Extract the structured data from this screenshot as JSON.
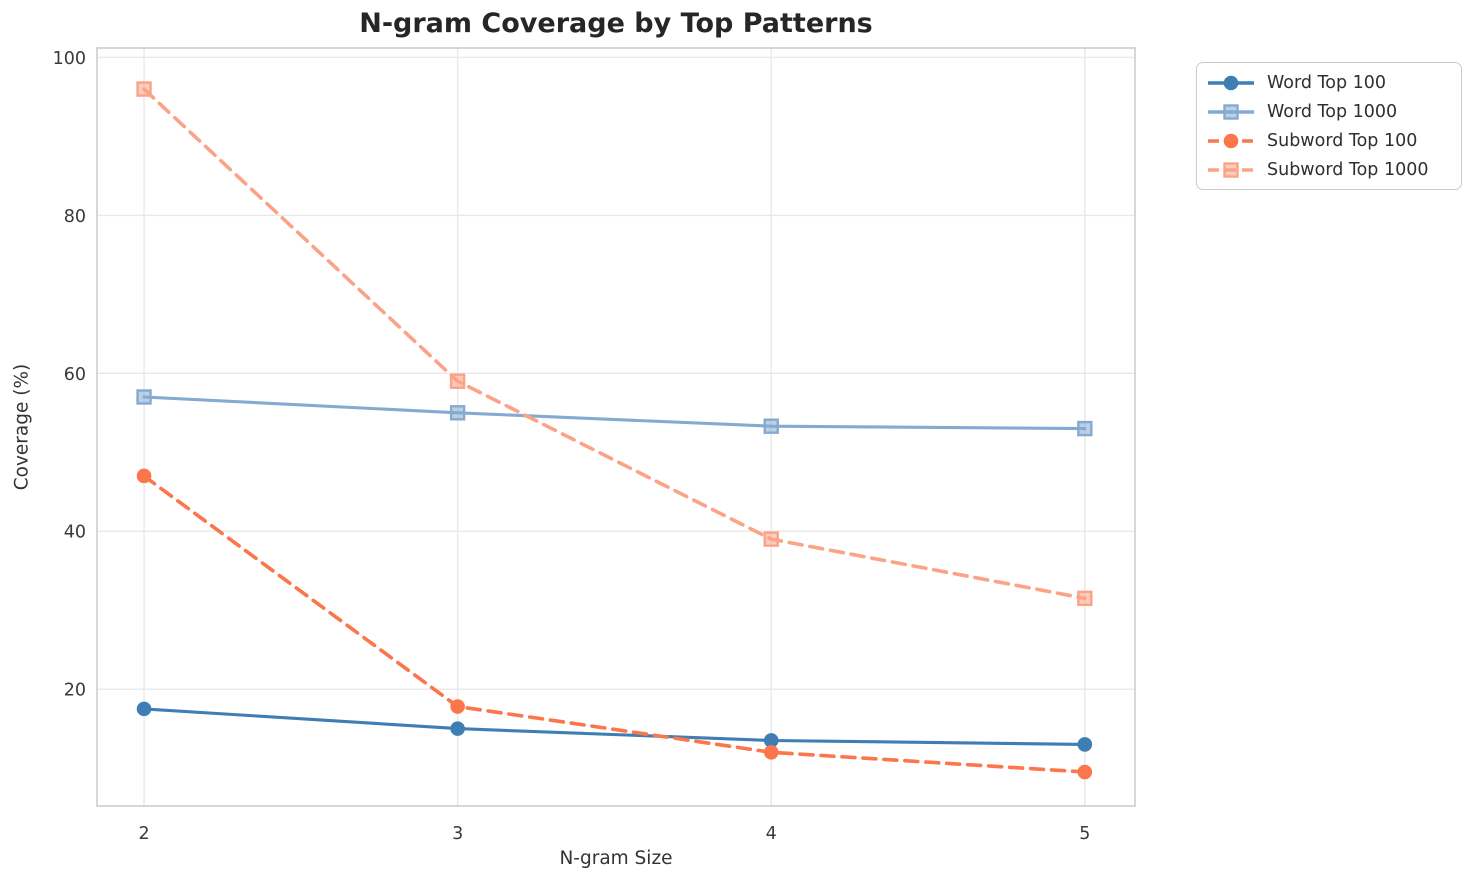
{
  "figure": {
    "background": "#ffffff",
    "grid_color": "#e8e8e8",
    "spine_color": "#c6c6c6",
    "tick_label_color": "#3a3a3a",
    "title_color": "#262626"
  },
  "chart_data": {
    "type": "line",
    "title": "N-gram Coverage by Top Patterns",
    "xlabel": "N-gram Size",
    "ylabel": "Coverage (%)",
    "x": [
      2,
      3,
      4,
      5
    ],
    "x_tick_labels": [
      "2",
      "3",
      "4",
      "5"
    ],
    "y_tick_values": [
      20,
      40,
      60,
      80,
      100
    ],
    "y_tick_labels": [
      "20",
      "40",
      "60",
      "80",
      "100"
    ],
    "xlim": [
      1.85,
      5.16
    ],
    "ylim": [
      5.2,
      101.2
    ],
    "grid": true,
    "legend_position": "outside upper right",
    "series": [
      {
        "name": "Word Top 100",
        "values": [
          17.5,
          15,
          13.5,
          13
        ],
        "color": "#3e7eb4",
        "line_style": "solid",
        "marker": "circle"
      },
      {
        "name": "Word Top 1000",
        "values": [
          57,
          55,
          53.3,
          53
        ],
        "color": "#85aacf",
        "line_style": "solid",
        "marker": "square"
      },
      {
        "name": "Subword Top 100",
        "values": [
          47,
          17.8,
          12,
          9.5
        ],
        "color": "#fb764a",
        "line_style": "dashed",
        "marker": "circle"
      },
      {
        "name": "Subword Top 1000",
        "values": [
          96,
          59,
          39,
          31.5
        ],
        "color": "#fca287",
        "line_style": "dashed",
        "marker": "square"
      }
    ]
  }
}
